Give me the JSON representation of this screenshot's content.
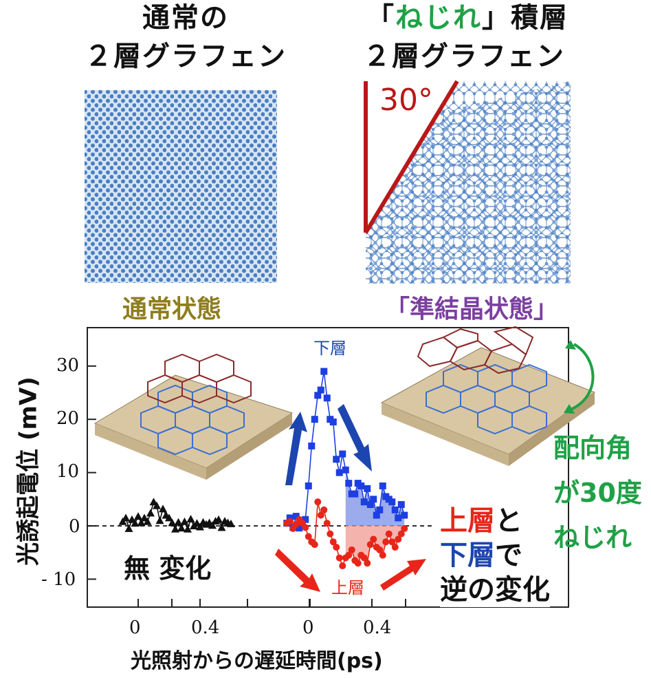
{
  "top": {
    "left_title_line1": "通常の",
    "left_title_line2": "２層グラフェン",
    "right_title_bracket_open": "「",
    "right_title_highlight": "ねじれ",
    "right_title_rest": "」積層",
    "right_title_line2": "２層グラフェン",
    "angle_label": "30°",
    "left_state_label": "通常状態",
    "right_state_label": "「準結晶状態」",
    "colors": {
      "olive": "#8e7d1d",
      "purple": "#7b3fa0",
      "green": "#1fa146",
      "red": "#b81818",
      "blue": "#1f4fb8",
      "lattice": "#4a7fc2"
    }
  },
  "chart": {
    "y_axis_title": "光誘起電位 (mV)",
    "x_axis_title": "光照射からの遅延時間(ps)",
    "y_ticks": [
      "30",
      "20",
      "10",
      "0",
      "- 10"
    ],
    "x_ticks": [
      "0",
      "0.4",
      "0",
      "0.4"
    ],
    "label_lower_layer": "下層",
    "label_upper_layer": "上層",
    "label_no_change": "無 変化",
    "side_text_1": "配向角",
    "side_text_2": "が30度",
    "side_text_3": "ねじれ",
    "legend_upper": "上層",
    "legend_and": "と",
    "legend_lower": "下層",
    "legend_de": "で",
    "legend_reverse": "逆の変化"
  },
  "chart_data": {
    "type": "line",
    "ylabel": "光誘起電位 (mV)",
    "xlabel": "光照射からの遅延時間(ps)",
    "ylim": [
      -15,
      37
    ],
    "series": [
      {
        "x": [
          -0.1,
          -0.08,
          -0.06,
          -0.04,
          -0.02,
          0.0,
          0.02,
          0.04,
          0.06,
          0.08,
          0.1,
          0.12,
          0.14,
          0.16,
          0.18,
          0.2,
          0.22,
          0.24,
          0.26,
          0.28,
          0.3,
          0.32,
          0.34,
          0.36,
          0.38,
          0.4,
          0.42,
          0.44,
          0.46,
          0.48,
          0.5,
          0.52,
          0.54,
          0.56,
          0.58,
          0.6
        ],
        "values": [
          0.8,
          1.5,
          -0.5,
          1.2,
          0.5,
          1.8,
          0.6,
          1.5,
          0.8,
          2.4,
          4.5,
          3.8,
          1.0,
          3.2,
          2.0,
          1.5,
          0.6,
          -0.6,
          0.7,
          -0.4,
          0.8,
          -0.6,
          1.3,
          0.0,
          0.5,
          -0.2,
          0.7,
          0.3,
          0.6,
          0.1,
          0.9,
          1.2,
          -0.3,
          0.9,
          0.6,
          0.4
        ]
      },
      {
        "x": [
          -0.15,
          -0.13,
          -0.11,
          -0.09,
          -0.07,
          -0.05,
          -0.03,
          -0.01,
          0.01,
          0.03,
          0.05,
          0.07,
          0.09,
          0.11,
          0.13,
          0.15,
          0.17,
          0.19,
          0.21,
          0.23,
          0.25,
          0.27,
          0.29,
          0.31,
          0.33,
          0.35,
          0.37,
          0.39,
          0.41,
          0.43,
          0.45,
          0.47,
          0.49,
          0.51,
          0.53,
          0.55,
          0.57,
          0.59,
          0.61
        ],
        "values": [
          0.5,
          1.5,
          -0.3,
          1.8,
          -0.4,
          0.3,
          1.2,
          7.5,
          15.0,
          20.0,
          24.5,
          25.5,
          29.0,
          24.0,
          20.0,
          19.5,
          12.5,
          10.0,
          13.5,
          10.5,
          8.0,
          6.0,
          6.0,
          8.0,
          7.5,
          4.5,
          7.0,
          4.0,
          5.0,
          2.0,
          3.0,
          7.5,
          5.5,
          5.0,
          4.5,
          3.0,
          1.5,
          4.0,
          2.0
        ]
      },
      {
        "x": [
          -0.15,
          -0.13,
          -0.11,
          -0.09,
          -0.07,
          -0.05,
          -0.03,
          -0.01,
          0.01,
          0.03,
          0.05,
          0.07,
          0.09,
          0.11,
          0.13,
          0.15,
          0.17,
          0.19,
          0.21,
          0.23,
          0.25,
          0.27,
          0.29,
          0.31,
          0.33,
          0.35,
          0.37,
          0.39,
          0.41,
          0.43,
          0.45,
          0.47,
          0.49,
          0.51,
          0.53,
          0.55,
          0.57,
          0.59,
          0.61
        ],
        "values": [
          0.5,
          0.8,
          -0.5,
          0.3,
          1.2,
          0.5,
          -0.3,
          -2.0,
          -3.0,
          -3.5,
          4.5,
          2.0,
          3.0,
          0.5,
          -1.5,
          -3.0,
          -4.0,
          -6.0,
          -7.5,
          -6.0,
          -5.5,
          -4.5,
          -6.5,
          -7.0,
          -5.5,
          -6.0,
          -7.0,
          -3.5,
          -2.5,
          -4.0,
          -4.5,
          -5.5,
          -3.0,
          -1.5,
          -3.0,
          -4.0,
          -2.5,
          -1.5,
          -0.5
        ]
      }
    ]
  }
}
